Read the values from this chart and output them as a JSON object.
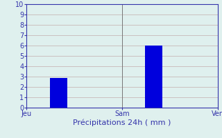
{
  "bar_positions": [
    1,
    4
  ],
  "bar_values": [
    2.9,
    6.0
  ],
  "bar_color": "#0000dd",
  "bar_width": 0.55,
  "xlabel": "Précipitations 24h ( mm )",
  "ylim": [
    0,
    10
  ],
  "yticks": [
    0,
    1,
    2,
    3,
    4,
    5,
    6,
    7,
    8,
    9,
    10
  ],
  "xlim": [
    0,
    6
  ],
  "xtick_positions": [
    0,
    3,
    6
  ],
  "xtick_labels": [
    "Jeu",
    "Sam",
    "Ven"
  ],
  "background_color": "#dff0ee",
  "grid_color": "#c8b8b8",
  "axis_color": "#3333aa",
  "text_color": "#3333aa",
  "xlabel_fontsize": 8,
  "tick_fontsize": 7,
  "vertical_lines_x": [
    3
  ],
  "figsize": [
    3.2,
    2.0
  ],
  "dpi": 100
}
